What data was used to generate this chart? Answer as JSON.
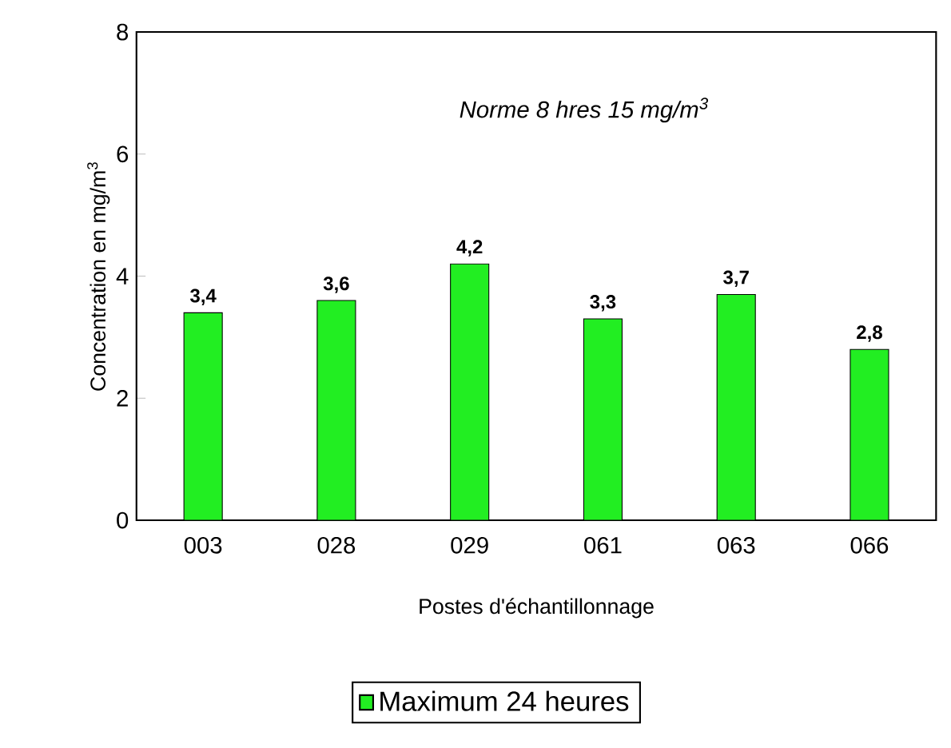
{
  "chart_data": {
    "type": "bar",
    "xlabel": "Postes d'échantillonnage",
    "ylabel": "Concentration  en mg/m$^{3}$",
    "categories": [
      "003",
      "028",
      "029",
      "061",
      "063",
      "066"
    ],
    "series": [
      {
        "name": "Maximum 24 heures",
        "color": "#22ee22",
        "values": [
          3.4,
          3.6,
          4.2,
          3.3,
          3.7,
          2.8
        ]
      }
    ],
    "value_labels": [
      "3,4",
      "3,6",
      "4,2",
      "3,3",
      "3,7",
      "2,8"
    ],
    "ylim": [
      0,
      8
    ],
    "yticks": [
      0,
      2,
      4,
      6,
      8
    ],
    "legend": "bottom",
    "annotations": [
      "Norme  8 hres 15 mg/m$^{3}$"
    ]
  }
}
